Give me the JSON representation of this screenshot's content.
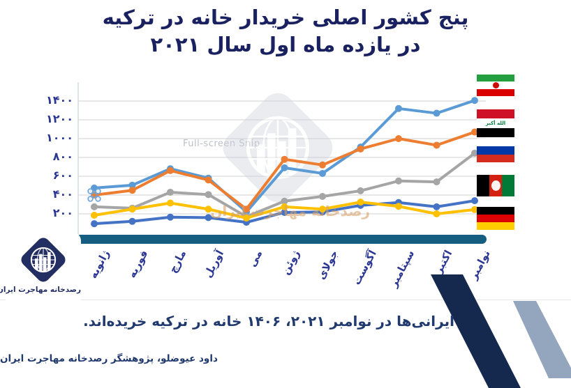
{
  "title": {
    "line1": "پنج کشور اصلی خریدار خانه در ترکیه",
    "line2": "در یازده ماه اول سال ۲۰۲۱"
  },
  "watermark": {
    "logo_text": "رصدخانه مهاجرت ایران",
    "snip_text": "Full-screen Snip"
  },
  "chart_data": {
    "type": "line",
    "title": "پنج کشور اصلی خریدار خانه در ترکیه در یازده ماه اول سال ۲۰۲۱",
    "categories": [
      "ژانویه",
      "فوریه",
      "مارچ",
      "آوریل",
      "می",
      "ژوئن",
      "جولای",
      "آگوست",
      "سپتامبر",
      "اکتبر",
      "نوامبر"
    ],
    "series": [
      {
        "country": "iran",
        "flag_icon": "iran-flag-icon",
        "color": "#5B9BD5",
        "values": [
          475,
          505,
          680,
          580,
          220,
          690,
          630,
          910,
          1320,
          1270,
          1406
        ]
      },
      {
        "country": "iraq",
        "flag_icon": "iraq-flag-icon",
        "color": "#ED7D31",
        "values": [
          400,
          450,
          660,
          560,
          250,
          780,
          720,
          890,
          1000,
          930,
          1070
        ]
      },
      {
        "country": "russia",
        "flag_icon": "russia-flag-icon",
        "color": "#A5A5A5",
        "values": [
          275,
          260,
          430,
          405,
          170,
          335,
          385,
          445,
          550,
          540,
          845
        ]
      },
      {
        "country": "afghanistan",
        "flag_icon": "afghanistan-flag-icon",
        "color": "#4472C4",
        "values": [
          95,
          120,
          165,
          160,
          110,
          215,
          220,
          290,
          320,
          275,
          340
        ]
      },
      {
        "country": "germany",
        "flag_icon": "germany-flag-icon",
        "color": "#FFC000",
        "values": [
          185,
          250,
          315,
          250,
          155,
          275,
          250,
          325,
          280,
          200,
          245
        ]
      }
    ],
    "y_ticks": [
      {
        "value": 1400,
        "label": "۱۴۰۰"
      },
      {
        "value": 1200,
        "label": "۱۲۰۰"
      },
      {
        "value": 1000,
        "label": "۱۰۰۰"
      },
      {
        "value": 800,
        "label": "۸۰۰"
      },
      {
        "value": 600,
        "label": "۶۰۰"
      },
      {
        "value": 400,
        "label": "۴۰۰"
      },
      {
        "value": 200,
        "label": "۲۰۰"
      }
    ],
    "ylim": [
      0,
      1500
    ],
    "grid": true,
    "legend_position": "flags-at-right",
    "selected_point": {
      "series": "iraq",
      "month_index": 0
    }
  },
  "footer": {
    "note": "ایرانی‌ها در نوامبر ۲۰۲۱، ۱۴۰۶ خانه در ترکیه خریده‌اند.",
    "credit": "داود عیوضلو، پژوهشگر رصدخانه مهاجرت ایران",
    "logo_text": "رصدخانه مهاجرت ایران"
  },
  "colors": {
    "title_text": "#1a2160",
    "axis_labels": "#2b3792",
    "axis_bar": "#155e81",
    "gridline": "#dbdbdb",
    "stripe_dark": "#15294e",
    "stripe_light": "#93a6be",
    "logo_navy": "#232e63",
    "selection_marker": "#6fa3d9"
  }
}
